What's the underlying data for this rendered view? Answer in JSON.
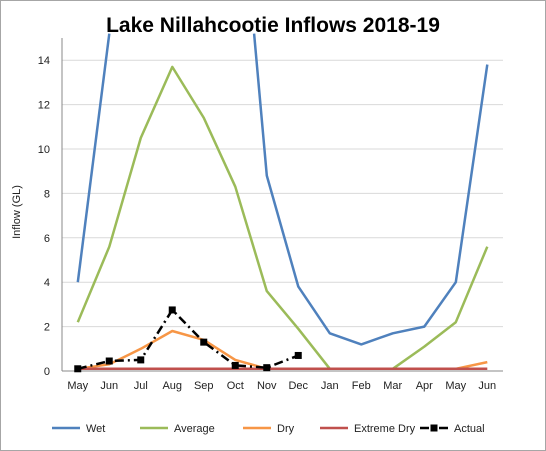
{
  "chart_data": {
    "type": "line",
    "title": "Lake Nillahcootie Inflows 2018-19",
    "xlabel": "",
    "ylabel": "Inflow (GL)",
    "ylim": [
      0,
      15
    ],
    "yticks": [
      0,
      2,
      4,
      6,
      8,
      10,
      12,
      14
    ],
    "categories": [
      "May",
      "Jun",
      "Jul",
      "Aug",
      "Sep",
      "Oct",
      "Nov",
      "Dec",
      "Jan",
      "Feb",
      "Mar",
      "Apr",
      "May",
      "Jun"
    ],
    "grid": true,
    "legend_position": "bottom",
    "series": [
      {
        "name": "Wet",
        "color": "#4f81bd",
        "dash": "solid",
        "values": [
          4.0,
          15.2,
          null,
          null,
          null,
          null,
          8.8,
          3.8,
          1.7,
          1.2,
          1.7,
          2.0,
          4.0,
          13.8
        ],
        "gap_segments": [
          [
            1,
            15.2
          ],
          [
            5.6,
            15.2
          ],
          [
            6,
            8.8
          ]
        ]
      },
      {
        "name": "Average",
        "color": "#9bbb59",
        "dash": "solid",
        "values": [
          2.2,
          5.6,
          10.5,
          13.7,
          11.4,
          8.3,
          3.6,
          1.9,
          0.1,
          0.1,
          0.1,
          1.1,
          2.2,
          5.6
        ]
      },
      {
        "name": "Dry",
        "color": "#f79646",
        "dash": "solid",
        "values": [
          0.1,
          0.3,
          1.0,
          1.8,
          1.4,
          0.5,
          0.1,
          0.1,
          0.1,
          0.1,
          0.1,
          0.1,
          0.1,
          0.4
        ]
      },
      {
        "name": "Extreme Dry",
        "color": "#c0504d",
        "dash": "solid",
        "values": [
          0.1,
          0.1,
          0.1,
          0.1,
          0.1,
          0.1,
          0.1,
          0.1,
          0.1,
          0.1,
          0.1,
          0.1,
          0.1,
          0.1
        ]
      },
      {
        "name": "Actual",
        "color": "#000000",
        "dash": "dashdot",
        "values": [
          0.1,
          0.45,
          0.5,
          2.75,
          1.3,
          0.25,
          0.15,
          0.7,
          null,
          null,
          null,
          null,
          null,
          null
        ]
      }
    ]
  }
}
